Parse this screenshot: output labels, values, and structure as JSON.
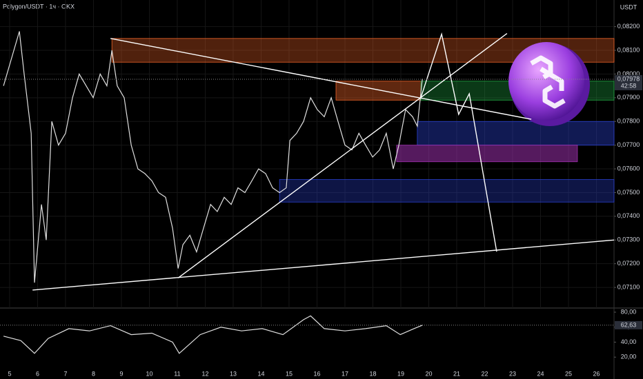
{
  "chart_data": [
    {
      "type": "line",
      "title": "Polygon/USDT · 1ч · OKX",
      "unit": "USDT",
      "color": "#e0e0e0",
      "grid": true,
      "xlim": [
        4.655,
        26.63
      ],
      "ylim": [
        0.0702,
        0.08305
      ],
      "xticks": [
        5,
        6,
        7,
        8,
        9,
        10,
        11,
        12,
        13,
        14,
        15,
        16,
        17,
        18,
        19,
        20,
        21,
        22,
        23,
        24,
        25,
        26
      ],
      "yticks": [
        {
          "value": 0.082,
          "label": "0,08200"
        },
        {
          "value": 0.081,
          "label": "0,08100"
        },
        {
          "value": 0.08,
          "label": "0,08000"
        },
        {
          "value": 0.079,
          "label": "0,07900"
        },
        {
          "value": 0.078,
          "label": "0,07800"
        },
        {
          "value": 0.077,
          "label": "0,07700"
        },
        {
          "value": 0.076,
          "label": "0,07600"
        },
        {
          "value": 0.075,
          "label": "0,07500"
        },
        {
          "value": 0.074,
          "label": "0,07400"
        },
        {
          "value": 0.073,
          "label": "0,07300"
        },
        {
          "value": 0.072,
          "label": "0,07200"
        },
        {
          "value": 0.071,
          "label": "0,07100"
        }
      ],
      "x": [
        4.78,
        5.35,
        5.52,
        5.77,
        5.89,
        6.14,
        6.31,
        6.51,
        6.75,
        7.0,
        7.25,
        7.49,
        7.74,
        7.99,
        8.24,
        8.48,
        8.66,
        8.85,
        9.1,
        9.35,
        9.59,
        9.84,
        10.09,
        10.33,
        10.58,
        10.83,
        11.03,
        11.2,
        11.45,
        11.69,
        11.94,
        12.19,
        12.43,
        12.68,
        12.93,
        13.17,
        13.42,
        13.67,
        13.91,
        14.16,
        14.41,
        14.66,
        14.9,
        15.03,
        15.27,
        15.52,
        15.77,
        16.01,
        16.26,
        16.51,
        16.75,
        17.0,
        17.25,
        17.5,
        17.74,
        17.99,
        18.24,
        18.48,
        18.73,
        18.93,
        19.17,
        19.42,
        19.59,
        19.77
      ],
      "values": [
        0.0795,
        0.0818,
        0.08,
        0.0775,
        0.0712,
        0.0745,
        0.073,
        0.078,
        0.077,
        0.0775,
        0.079,
        0.08,
        0.0795,
        0.079,
        0.08,
        0.0795,
        0.081,
        0.0795,
        0.079,
        0.077,
        0.076,
        0.0758,
        0.0755,
        0.075,
        0.0748,
        0.0735,
        0.0718,
        0.0728,
        0.0732,
        0.0725,
        0.0735,
        0.0745,
        0.0742,
        0.0748,
        0.0745,
        0.0752,
        0.075,
        0.0755,
        0.076,
        0.0758,
        0.0752,
        0.075,
        0.0752,
        0.0772,
        0.0775,
        0.078,
        0.079,
        0.0785,
        0.0782,
        0.079,
        0.078,
        0.077,
        0.0768,
        0.0775,
        0.077,
        0.0765,
        0.0768,
        0.0775,
        0.076,
        0.077,
        0.0785,
        0.0782,
        0.0778,
        0.0798
      ],
      "last": {
        "value": 0.07978,
        "label": "0,07978"
      },
      "countdown": "42:58",
      "zones": [
        {
          "x": [
            8.66,
            26.63
          ],
          "y": [
            0.0815,
            0.0805
          ],
          "color": "#f0642855"
        },
        {
          "x": [
            16.68,
            19.72
          ],
          "y": [
            0.0797,
            0.0789
          ],
          "color": "#f0642866"
        },
        {
          "x": [
            19.72,
            26.63
          ],
          "y": [
            0.0797,
            0.0789
          ],
          "color": "#22aa4455"
        },
        {
          "x": [
            19.59,
            26.63
          ],
          "y": [
            0.078,
            0.077
          ],
          "color": "#2a40d066"
        },
        {
          "x": [
            18.85,
            25.32
          ],
          "y": [
            0.077,
            0.0763
          ],
          "color": "#a030b088"
        },
        {
          "x": [
            14.66,
            26.63
          ],
          "y": [
            0.07555,
            0.0746
          ],
          "color": "#2a40d055"
        }
      ],
      "lines": [
        {
          "x": [
            8.61,
            23.67
          ],
          "y": [
            0.0815,
            0.07809
          ]
        },
        {
          "x": [
            5.82,
            26.63
          ],
          "y": [
            0.07089,
            0.073
          ]
        },
        {
          "x": [
            11.03,
            22.8
          ],
          "y": [
            0.0714,
            0.08171
          ]
        },
        {
          "x": [
            19.72,
            20.46,
            21.07,
            21.45,
            22.43
          ],
          "y": [
            0.07902,
            0.08168,
            0.0783,
            0.07917,
            0.07251
          ]
        }
      ]
    },
    {
      "type": "line",
      "color": "#e0e0e0",
      "xlim": [
        4.655,
        26.63
      ],
      "ylim": [
        0,
        84.6
      ],
      "yticks": [
        {
          "value": 80,
          "label": "80,00"
        },
        {
          "value": 60,
          "label": "60,00"
        },
        {
          "value": 40,
          "label": "40,00"
        },
        {
          "value": 20,
          "label": "20,00"
        }
      ],
      "x": [
        4.78,
        5.4,
        5.89,
        6.38,
        7.12,
        7.86,
        8.61,
        9.35,
        10.09,
        10.83,
        11.07,
        11.82,
        12.56,
        13.3,
        14.04,
        14.78,
        15.52,
        15.77,
        16.26,
        17.0,
        17.74,
        18.48,
        18.98,
        19.47,
        19.77
      ],
      "values": [
        48,
        42,
        25,
        45,
        58,
        55,
        62,
        50,
        52,
        40,
        25,
        50,
        60,
        55,
        58,
        50,
        70,
        75,
        58,
        55,
        58,
        62,
        50,
        58,
        62.63
      ],
      "last": {
        "value": 62.63,
        "label": "62,63"
      }
    }
  ]
}
